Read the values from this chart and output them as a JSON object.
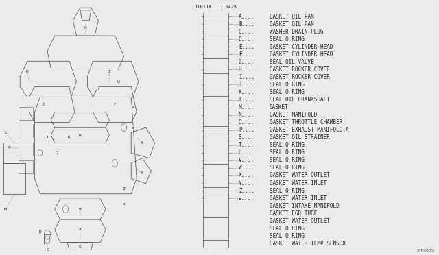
{
  "bg_color": "#ebebeb",
  "part_number_left": "11011K",
  "part_number_right": "11042K",
  "diagram_ref": "J0P0035",
  "parts": [
    [
      "A",
      "GASKET OIL PAN"
    ],
    [
      "B",
      "GASKET OIL PAN"
    ],
    [
      "C",
      "WASHER DRAIN PLUG"
    ],
    [
      "D",
      "SEAL O RING"
    ],
    [
      "E",
      "GASKET CYLINDER HEAD"
    ],
    [
      "F",
      "GASKET CYLINDER HEAD"
    ],
    [
      "G",
      "SEAL OIL VALVE"
    ],
    [
      "H",
      "GASKET ROCKER COVER"
    ],
    [
      "I",
      "GASKET ROCKER COVER"
    ],
    [
      "J",
      "SEAL O RING"
    ],
    [
      "K",
      "SEAL O RING"
    ],
    [
      "L",
      "SEAL OIL CRANKSHAFT"
    ],
    [
      "M",
      "GASKET"
    ],
    [
      "N",
      "GASKET MANIFOLD"
    ],
    [
      "O",
      "GASKET THROTTLE CHAMBER"
    ],
    [
      "P",
      "GASKET EXHAUST MANIFOLD,A"
    ],
    [
      "S",
      "GASKET OIL STRAINER"
    ],
    [
      "T",
      "SEAL O RING"
    ],
    [
      "U",
      "SEAL O RING"
    ],
    [
      "V",
      "SEAL O RING"
    ],
    [
      "W",
      "SEAL O RING"
    ],
    [
      "X",
      "GASKET WATER OUTLET"
    ],
    [
      "Y",
      "GASKET WATER INLET"
    ],
    [
      "Z",
      "SEAL O RING"
    ],
    [
      "a",
      "GASKET WATER INLET"
    ],
    [
      "",
      "GASKET INTAKE MANIFOLD"
    ],
    [
      "",
      "GASKET EGR TUBE"
    ],
    [
      "",
      "GASKET WATER OUTLET"
    ],
    [
      "",
      "SEAL O RING"
    ],
    [
      "",
      "SEAL O RING"
    ],
    [
      "",
      "GASKET WATER TEMP SENSOR"
    ]
  ],
  "font_size": 5.5,
  "mono_font": "monospace",
  "line_color": "#777777",
  "text_color": "#222222"
}
